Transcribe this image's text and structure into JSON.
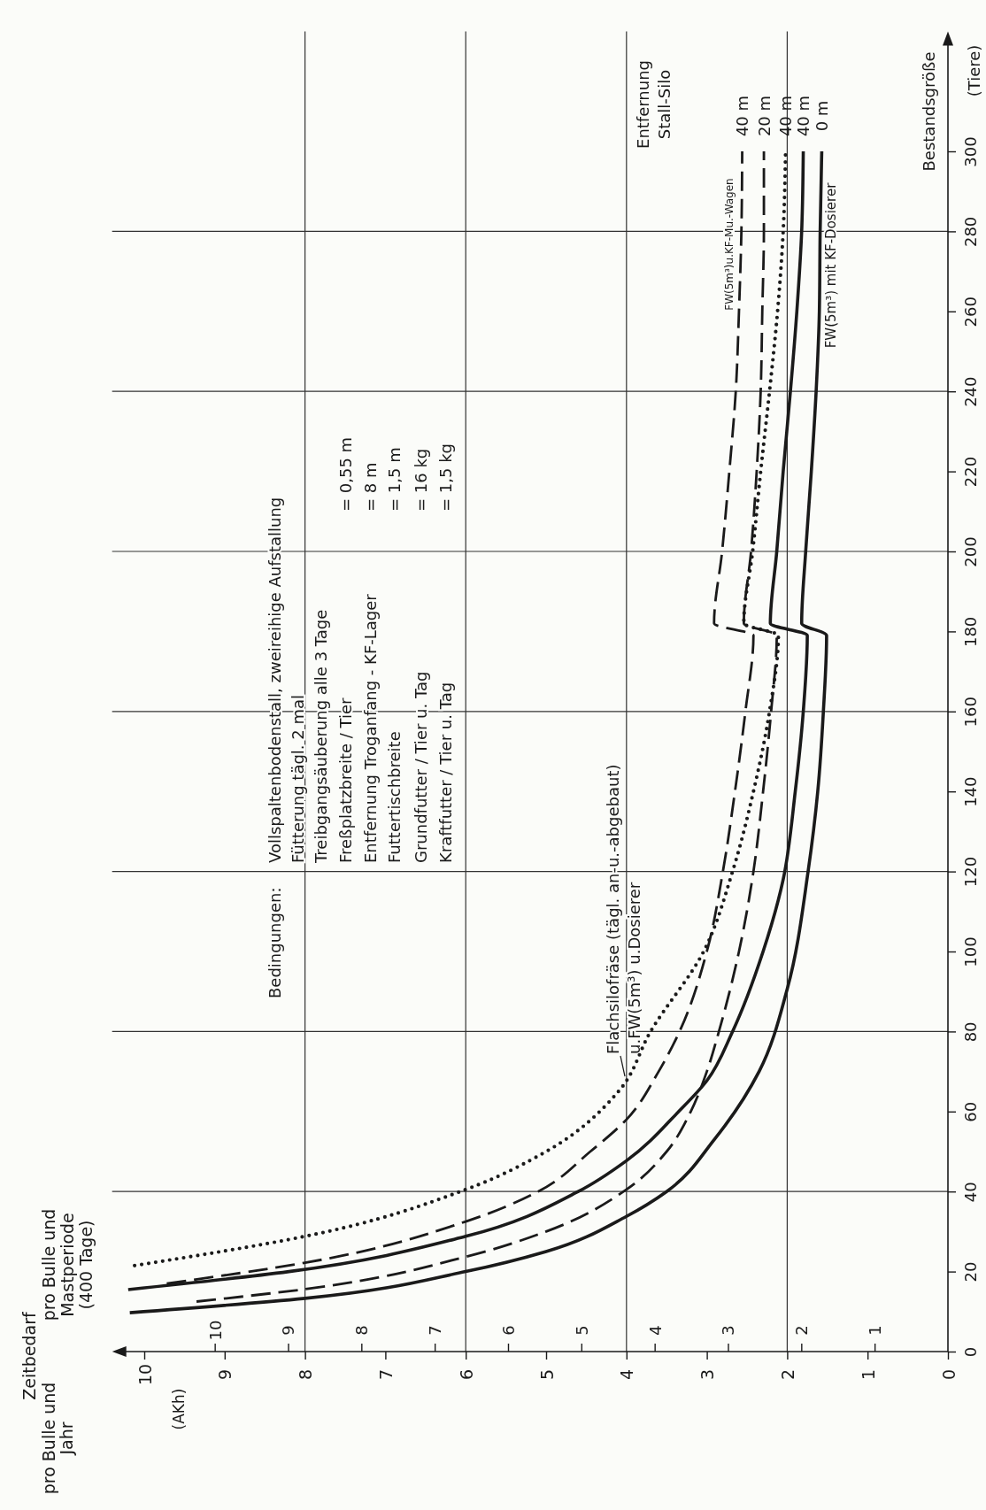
{
  "chart_data": {
    "type": "line",
    "title": "Zeitbedarf",
    "x2label": "pro Bulle und Mastperiode (400 Tage)",
    "ylabel": "Bestandsgröße",
    "legend_title": "Entfernung Stall-Silo",
    "annotations": [
      "(AKh)",
      "(Tiere)",
      "Bedingungen:",
      "Vollspaltenbodenstall, zweireihige Aufstallung",
      "Fütterung tägl. 2 mal",
      "Treibgangsäuberung alle 3 Tage",
      "Freßplatzbreite / Tier = 0,55 m",
      "Entfernung Troganfang - KF-Lager = 8 m",
      "Futtertischbreite = 1,5 m",
      "Grundfutter / Tier u. Tag = 16 kg",
      "Kraftfutter / Tier u. Tag = 1,5 kg",
      "FW(5m³)u.KF-Mu.-Wagen",
      "FW(5m³) mit KF-Dosierer",
      "Flachsilofräse (tägl. an-u.-abgebaut)",
      "u.FW(5m³) u.Dosierer",
      "pro Bulle und Jahr"
    ],
    "xlim": [
      10.4,
      0
    ],
    "xticks": [
      0,
      1,
      2,
      3,
      4,
      5,
      6,
      7,
      8,
      9,
      10
    ],
    "x2lim": [
      11.4,
      0
    ],
    "x2ticks": [
      1,
      2,
      3,
      4,
      5,
      6,
      7,
      8,
      9,
      10
    ],
    "ylim": [
      0,
      330
    ],
    "yticks": [
      0,
      20,
      40,
      60,
      80,
      100,
      120,
      140,
      160,
      180,
      200,
      220,
      240,
      260,
      280,
      300
    ],
    "marker": "none",
    "ref_lines": [
      {
        "axis": "y",
        "value": 40,
        "color": "#333333"
      },
      {
        "axis": "y",
        "value": 80,
        "color": "#333333"
      },
      {
        "axis": "y",
        "value": 120,
        "color": "#333333"
      },
      {
        "axis": "y",
        "value": 160,
        "color": "#333333"
      },
      {
        "axis": "y",
        "value": 200,
        "color": "#333333"
      },
      {
        "axis": "y",
        "value": 240,
        "color": "#333333"
      },
      {
        "axis": "y",
        "value": 280,
        "color": "#333333"
      },
      {
        "axis": "x",
        "value": 2,
        "color": "#333333"
      },
      {
        "axis": "x",
        "value": 4,
        "color": "#333333"
      },
      {
        "axis": "x",
        "value": 6,
        "color": "#333333"
      },
      {
        "axis": "x",
        "value": 8,
        "color": "#333333"
      }
    ],
    "series": [
      {
        "name": "40 m",
        "color": "#1a1a1a",
        "line_style": "dashed",
        "values": [
          17,
          22.2,
          32.5,
          40,
          50,
          58,
          70,
          80,
          100,
          120,
          140,
          160,
          179,
          182,
          200,
          220,
          240,
          260,
          280,
          300
        ],
        "x": [
          9.72,
          8,
          6,
          5.1,
          4.45,
          4,
          3.6,
          3.34,
          3.0,
          2.8,
          2.65,
          2.52,
          2.42,
          2.91,
          2.81,
          2.72,
          2.64,
          2.6,
          2.57,
          2.56
        ]
      },
      {
        "name": "20 m",
        "color": "#1a1a1a",
        "line_style": "dashed",
        "values": [
          12.5,
          15.6,
          23.7,
          30,
          40.5,
          50,
          60,
          70,
          80,
          100,
          120,
          140,
          160,
          179,
          182,
          200,
          220,
          240,
          260,
          280,
          300
        ],
        "x": [
          9.35,
          8,
          6,
          5,
          4,
          3.5,
          3.2,
          3.0,
          2.85,
          2.6,
          2.42,
          2.3,
          2.2,
          2.13,
          2.54,
          2.45,
          2.38,
          2.33,
          2.31,
          2.29,
          2.29
        ]
      },
      {
        "name": "40 m",
        "color": "#1a1a1a",
        "line_style": "dotted",
        "values": [
          21.5,
          28.8,
          40.5,
          50,
          65,
          80,
          100,
          120,
          140,
          160,
          179,
          182,
          200,
          220,
          240,
          260,
          280,
          300
        ],
        "x": [
          10.12,
          8,
          6,
          5,
          4.1,
          3.7,
          3.04,
          2.68,
          2.42,
          2.22,
          2.11,
          2.54,
          2.43,
          2.33,
          2.22,
          2.12,
          2.05,
          2.02
        ]
      },
      {
        "name": "40 m",
        "color": "#1a1a1a",
        "line_style": "solid",
        "values": [
          15.5,
          20,
          28.8,
          40,
          47.7,
          60,
          67.7,
          80,
          100,
          118,
          140,
          160,
          179,
          182,
          200,
          220,
          240,
          260,
          280,
          300
        ],
        "x": [
          10.2,
          8.2,
          6,
          4.6,
          4,
          3.35,
          3,
          2.68,
          2.3,
          2.05,
          1.9,
          1.8,
          1.75,
          2.21,
          2.13,
          2.05,
          1.96,
          1.88,
          1.82,
          1.8
        ]
      },
      {
        "name": "0 m",
        "color": "#1a1a1a",
        "line_style": "solid",
        "values": [
          9.7,
          13.3,
          20,
          25,
          33.8,
          40,
          53.2,
          70,
          90.6,
          120,
          140,
          160,
          179,
          182,
          200,
          220,
          240,
          260,
          280,
          300
        ],
        "x": [
          10.18,
          8,
          6,
          5,
          4,
          3.5,
          2.9,
          2.35,
          2,
          1.74,
          1.62,
          1.55,
          1.51,
          1.82,
          1.77,
          1.7,
          1.64,
          1.6,
          1.59,
          1.57
        ]
      }
    ]
  }
}
